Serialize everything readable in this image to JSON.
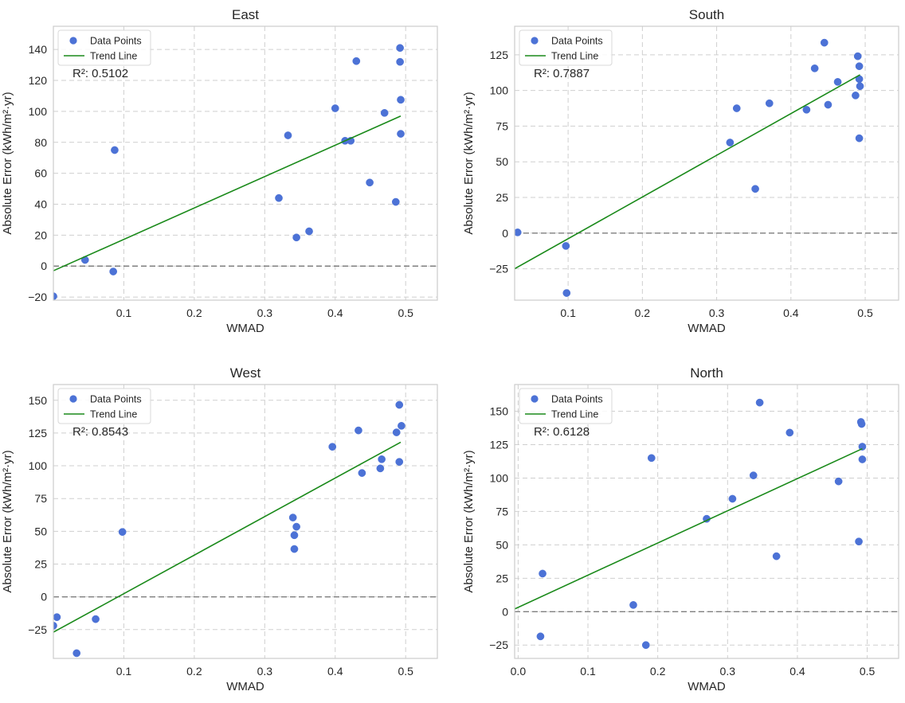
{
  "colors": {
    "point": "#4c72d6",
    "trend": "#1a8a1a",
    "zero_line": "#7f7f7f",
    "grid": "#cfcfcf",
    "frame": "#cccccc"
  },
  "chart_data": [
    {
      "type": "scatter",
      "title": "East",
      "xlabel": "WMAD",
      "ylabel": "Absolute Error (kWh/m²·yr)",
      "xlim": [
        0.0,
        0.545
      ],
      "ylim": [
        -22,
        155
      ],
      "xticks": [
        0.1,
        0.2,
        0.3,
        0.4,
        0.5
      ],
      "yticks": [
        -20,
        0,
        20,
        40,
        60,
        80,
        100,
        120,
        140
      ],
      "xtick_labels": [
        "0.1",
        "0.2",
        "0.3",
        "0.4",
        "0.5"
      ],
      "ytick_labels": [
        "−20",
        "0",
        "20",
        "40",
        "60",
        "80",
        "100",
        "120",
        "140"
      ],
      "legend": {
        "placement": "upper-left",
        "entries": [
          "Data Points",
          "Trend Line"
        ]
      },
      "r2_label": "R²: 0.5102",
      "grid": true,
      "zero_line": true,
      "points": [
        [
          0.0,
          -19.5
        ],
        [
          0.045,
          4
        ],
        [
          0.085,
          -3.5
        ],
        [
          0.087,
          75
        ],
        [
          0.32,
          44
        ],
        [
          0.333,
          84.5
        ],
        [
          0.345,
          18.5
        ],
        [
          0.363,
          22.5
        ],
        [
          0.4,
          102
        ],
        [
          0.414,
          81
        ],
        [
          0.422,
          81
        ],
        [
          0.43,
          132.5
        ],
        [
          0.449,
          54
        ],
        [
          0.47,
          99
        ],
        [
          0.486,
          41.5
        ],
        [
          0.492,
          141
        ],
        [
          0.492,
          132
        ],
        [
          0.493,
          107.5
        ],
        [
          0.493,
          85.5
        ]
      ],
      "trend": [
        [
          0.0,
          -3
        ],
        [
          0.493,
          97
        ]
      ]
    },
    {
      "type": "scatter",
      "title": "South",
      "xlabel": "WMAD",
      "ylabel": "Absolute Error (kWh/m²·yr)",
      "xlim": [
        0.028,
        0.545
      ],
      "ylim": [
        -47,
        145
      ],
      "xticks": [
        0.1,
        0.2,
        0.3,
        0.4,
        0.5
      ],
      "yticks": [
        -25,
        0,
        25,
        50,
        75,
        100,
        125
      ],
      "xtick_labels": [
        "0.1",
        "0.2",
        "0.3",
        "0.4",
        "0.5"
      ],
      "ytick_labels": [
        "−25",
        "0",
        "25",
        "50",
        "75",
        "100",
        "125"
      ],
      "legend": {
        "placement": "upper-left",
        "entries": [
          "Data Points",
          "Trend Line"
        ]
      },
      "r2_label": "R²: 0.7887",
      "grid": true,
      "zero_line": true,
      "points": [
        [
          0.032,
          0.5
        ],
        [
          0.097,
          -9
        ],
        [
          0.098,
          -42
        ],
        [
          0.318,
          63.5
        ],
        [
          0.327,
          87.5
        ],
        [
          0.352,
          31
        ],
        [
          0.371,
          91
        ],
        [
          0.421,
          86.5
        ],
        [
          0.432,
          115.5
        ],
        [
          0.445,
          133.5
        ],
        [
          0.45,
          90
        ],
        [
          0.463,
          106
        ],
        [
          0.487,
          96.5
        ],
        [
          0.49,
          124
        ],
        [
          0.492,
          117
        ],
        [
          0.492,
          108
        ],
        [
          0.493,
          103
        ],
        [
          0.492,
          66.5
        ]
      ],
      "trend": [
        [
          0.028,
          -25
        ],
        [
          0.493,
          111
        ]
      ]
    },
    {
      "type": "scatter",
      "title": "West",
      "xlabel": "WMAD",
      "ylabel": "Absolute Error (kWh/m²·yr)",
      "xlim": [
        0.0,
        0.545
      ],
      "ylim": [
        -47,
        162
      ],
      "xticks": [
        0.1,
        0.2,
        0.3,
        0.4,
        0.5
      ],
      "yticks": [
        -25,
        0,
        25,
        50,
        75,
        100,
        125,
        150
      ],
      "xtick_labels": [
        "0.1",
        "0.2",
        "0.3",
        "0.4",
        "0.5"
      ],
      "ytick_labels": [
        "−25",
        "0",
        "25",
        "50",
        "75",
        "100",
        "125",
        "150"
      ],
      "legend": {
        "placement": "upper-left",
        "entries": [
          "Data Points",
          "Trend Line"
        ]
      },
      "r2_label": "R²: 0.8543",
      "grid": true,
      "zero_line": true,
      "points": [
        [
          0.0,
          -22
        ],
        [
          0.005,
          -15.5
        ],
        [
          0.033,
          -43
        ],
        [
          0.06,
          -17
        ],
        [
          0.098,
          49.5
        ],
        [
          0.34,
          60.5
        ],
        [
          0.342,
          47
        ],
        [
          0.342,
          36.5
        ],
        [
          0.345,
          53.5
        ],
        [
          0.396,
          114.5
        ],
        [
          0.433,
          127
        ],
        [
          0.438,
          94.5
        ],
        [
          0.464,
          98
        ],
        [
          0.466,
          105
        ],
        [
          0.487,
          125.5
        ],
        [
          0.491,
          146.5
        ],
        [
          0.491,
          103
        ],
        [
          0.494,
          130.5
        ]
      ],
      "trend": [
        [
          0.0,
          -27
        ],
        [
          0.493,
          118
        ]
      ]
    },
    {
      "type": "scatter",
      "title": "North",
      "xlabel": "WMAD",
      "ylabel": "Absolute Error (kWh/m²·yr)",
      "xlim": [
        -0.005,
        0.545
      ],
      "ylim": [
        -35,
        170
      ],
      "xticks": [
        0.0,
        0.1,
        0.2,
        0.3,
        0.4,
        0.5
      ],
      "yticks": [
        -25,
        0,
        25,
        50,
        75,
        100,
        125,
        150
      ],
      "xtick_labels": [
        "0.0",
        "0.1",
        "0.2",
        "0.3",
        "0.4",
        "0.5"
      ],
      "ytick_labels": [
        "−25",
        "0",
        "25",
        "50",
        "75",
        "100",
        "125",
        "150"
      ],
      "legend": {
        "placement": "upper-left",
        "entries": [
          "Data Points",
          "Trend Line"
        ]
      },
      "r2_label": "R²: 0.6128",
      "grid": true,
      "zero_line": true,
      "points": [
        [
          0.032,
          -18.5
        ],
        [
          0.035,
          28.5
        ],
        [
          0.165,
          5
        ],
        [
          0.183,
          -25
        ],
        [
          0.191,
          115
        ],
        [
          0.27,
          69.5
        ],
        [
          0.307,
          84.5
        ],
        [
          0.337,
          102
        ],
        [
          0.346,
          156.5
        ],
        [
          0.37,
          41.5
        ],
        [
          0.389,
          134
        ],
        [
          0.459,
          97.5
        ],
        [
          0.488,
          52.5
        ],
        [
          0.491,
          142
        ],
        [
          0.492,
          140.5
        ],
        [
          0.493,
          123.5
        ],
        [
          0.493,
          114
        ]
      ],
      "trend": [
        [
          -0.005,
          2
        ],
        [
          0.493,
          122
        ]
      ]
    }
  ]
}
